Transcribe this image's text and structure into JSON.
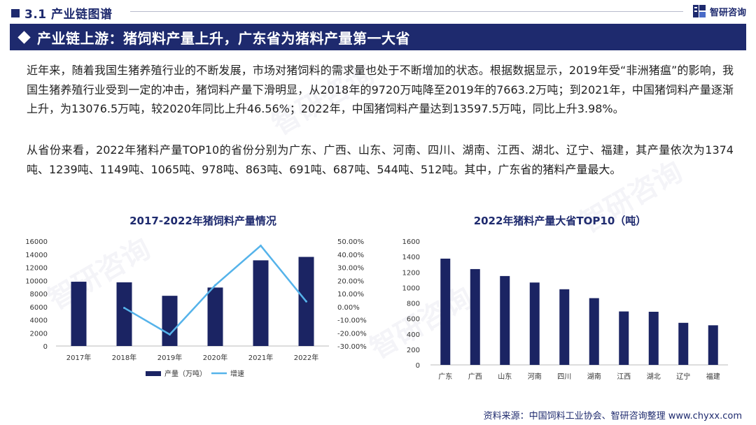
{
  "header": {
    "section_title": "3.1 产业链图谱",
    "brand_name": "智研咨询"
  },
  "banner": {
    "title": "产业链上游：猪饲料产量上升，广东省为猪料产量第一大省"
  },
  "paragraphs": [
    "近年来，随着我国生猪养殖行业的不断发展，市场对猪饲料的需求量也处于不断增加的状态。根据数据显示，2019年受“非洲猪瘟”的影响，我国生猪养殖行业受到一定的冲击，猪饲料产量下滑明显，从2018年的9720万吨降至2019年的7663.2万吨；到2021年，中国猪饲料产量逐渐上升，为13076.5万吨，较2020年同比上升46.56%；2022年，中国猪饲料产量达到13597.5万吨，同比上升3.98%。",
    "从省份来看，2022年猪料产量TOP10的省份分别为广东、广西、山东、河南、四川、湖南、江西、湖北、辽宁、福建，其产量依次为1374吨、1239吨、1149吨、1065吨、978吨、863吨、691吨、687吨、544吨、512吨。其中，广东省的猪料产量最大。"
  ],
  "footer": {
    "source": "资料来源：中国饲料工业协会、智研咨询整理   www.chyxx.com"
  },
  "watermark": "智研咨询",
  "colors": {
    "navy": "#1e2a6e",
    "bar": "#1b2463",
    "line": "#55b3ea"
  },
  "chart_data": [
    {
      "type": "bar",
      "title": "2017-2022年猪饲料产量情况",
      "categories": [
        "2017年",
        "2018年",
        "2019年",
        "2020年",
        "2021年",
        "2022年"
      ],
      "series": [
        {
          "name": "产量（万吨）",
          "type": "bar",
          "axis": "left",
          "values": [
            9810,
            9720,
            7663.2,
            8922.5,
            13076.5,
            13597.5
          ]
        },
        {
          "name": "增速",
          "type": "line",
          "axis": "right",
          "values": [
            null,
            -0.9,
            -21.2,
            16.4,
            46.56,
            3.98
          ]
        }
      ],
      "y_left": {
        "ylim": [
          0,
          16000
        ],
        "ticks": [
          0,
          2000,
          4000,
          6000,
          8000,
          10000,
          12000,
          14000,
          16000
        ]
      },
      "y_right": {
        "ylim": [
          -30,
          50
        ],
        "ticks": [
          "-30.00%",
          "-20.00%",
          "-10.00%",
          "0.00%",
          "10.00%",
          "20.00%",
          "30.00%",
          "40.00%",
          "50.00%"
        ]
      },
      "legend": "bottom",
      "grid": false
    },
    {
      "type": "bar",
      "title": "2022年猪料产量大省TOP10（吨）",
      "categories": [
        "广东",
        "广西",
        "山东",
        "河南",
        "四川",
        "湖南",
        "江西",
        "湖北",
        "辽宁",
        "福建"
      ],
      "values": [
        1374,
        1239,
        1149,
        1065,
        978,
        863,
        691,
        687,
        544,
        512
      ],
      "ylim": [
        0,
        1600
      ],
      "ticks": [
        0,
        200,
        400,
        600,
        800,
        1000,
        1200,
        1400,
        1600
      ],
      "grid": false
    }
  ]
}
